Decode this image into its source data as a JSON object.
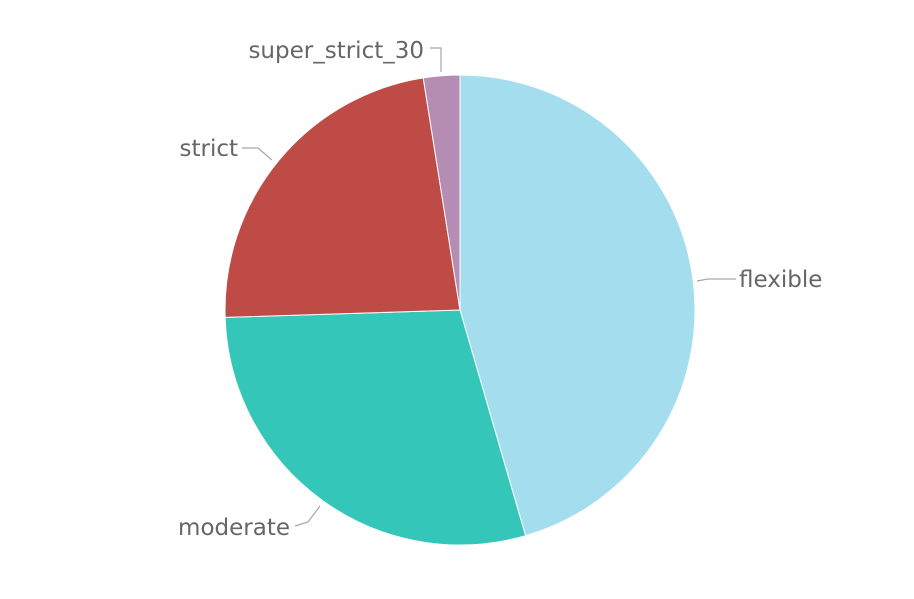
{
  "chart_data": {
    "type": "pie",
    "title": "",
    "legend": "none",
    "slices": [
      {
        "label": "flexible",
        "value": 45.5,
        "color": "#A4DDEE"
      },
      {
        "label": "moderate",
        "value": 29.0,
        "color": "#35C6BA"
      },
      {
        "label": "strict",
        "value": 23.0,
        "color": "#BF4B47"
      },
      {
        "label": "super_strict_30",
        "value": 2.5,
        "color": "#B58CB2"
      }
    ]
  }
}
